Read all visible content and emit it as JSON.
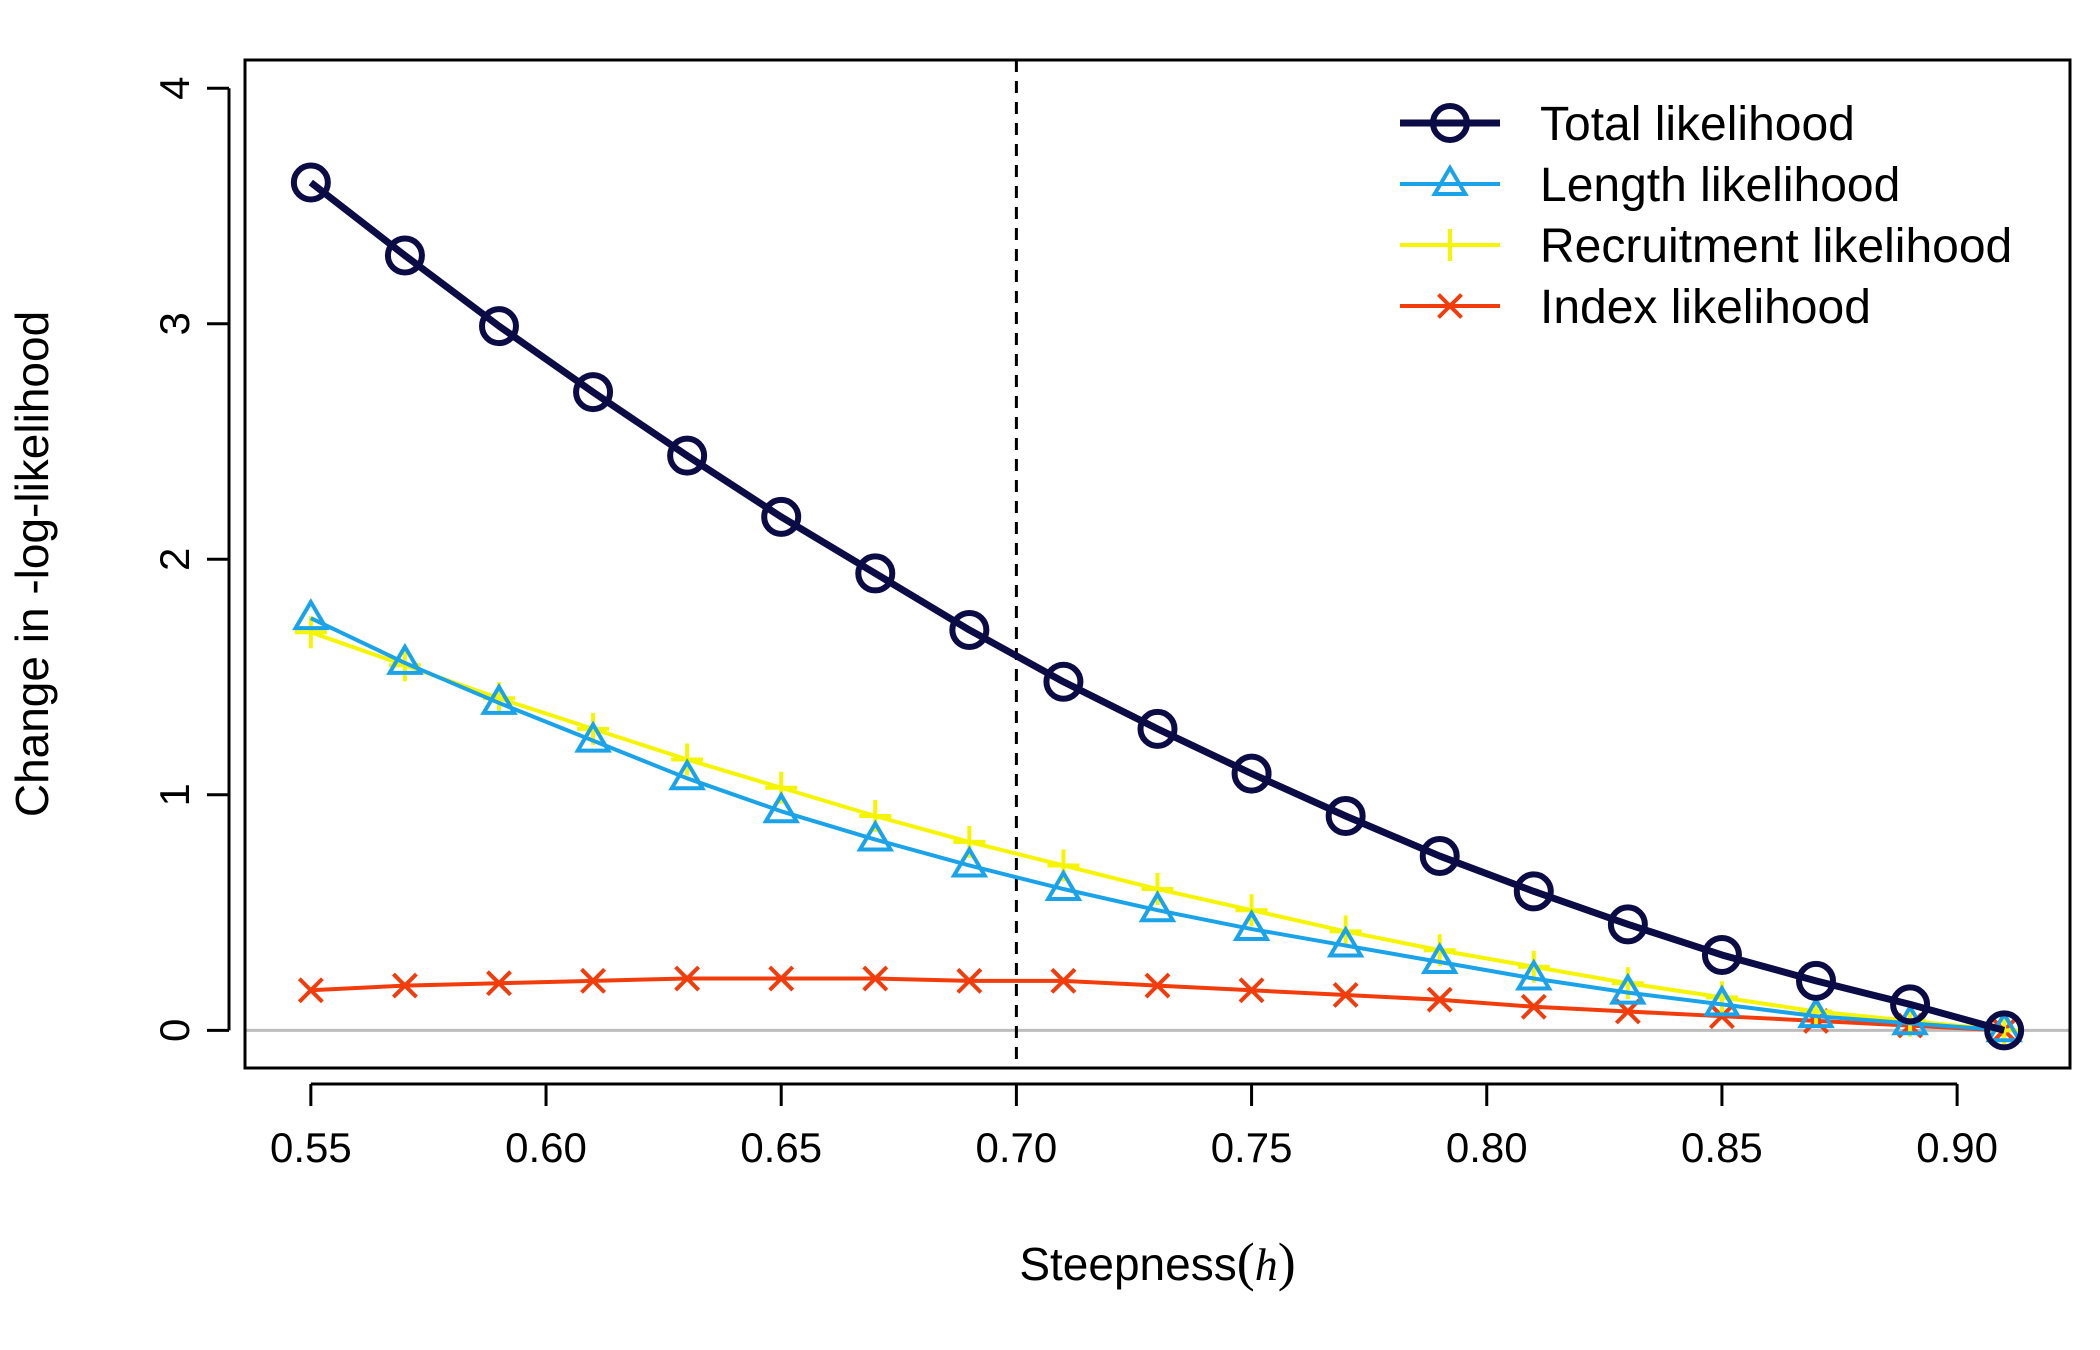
{
  "chart_data": {
    "type": "line",
    "xlabel_prefix": "Steepness",
    "xlabel_symbol": "h",
    "ylabel": "Change in -log-likelihood",
    "xlim": [
      0.536,
      0.924
    ],
    "ylim": [
      -0.16,
      4.12
    ],
    "x_ticks": [
      "0.55",
      "0.60",
      "0.65",
      "0.70",
      "0.75",
      "0.80",
      "0.85",
      "0.90"
    ],
    "x_tick_values": [
      0.55,
      0.6,
      0.65,
      0.7,
      0.75,
      0.8,
      0.85,
      0.9
    ],
    "y_ticks": [
      "0",
      "1",
      "2",
      "3",
      "4"
    ],
    "y_tick_values": [
      0,
      1,
      2,
      3,
      4
    ],
    "reference_vline": 0.7,
    "reference_hline": 0,
    "legend_position": "top-right",
    "x": [
      0.55,
      0.57,
      0.59,
      0.61,
      0.63,
      0.65,
      0.67,
      0.69,
      0.71,
      0.73,
      0.75,
      0.77,
      0.79,
      0.81,
      0.83,
      0.85,
      0.87,
      0.89,
      0.91
    ],
    "series": [
      {
        "name": "Total likelihood",
        "marker": "circle",
        "color": "#0b0b45",
        "values": [
          3.6,
          3.29,
          2.99,
          2.71,
          2.44,
          2.18,
          1.94,
          1.7,
          1.48,
          1.28,
          1.09,
          0.91,
          0.74,
          0.59,
          0.45,
          0.32,
          0.21,
          0.11,
          0.0
        ]
      },
      {
        "name": "Length likelihood",
        "marker": "triangle",
        "color": "#1aa3e8",
        "values": [
          1.75,
          1.56,
          1.39,
          1.23,
          1.07,
          0.93,
          0.81,
          0.7,
          0.6,
          0.51,
          0.43,
          0.36,
          0.29,
          0.22,
          0.16,
          0.11,
          0.06,
          0.03,
          0.0
        ]
      },
      {
        "name": "Recruitment likelihood",
        "marker": "plus",
        "color": "#f5f500",
        "values": [
          1.69,
          1.55,
          1.41,
          1.28,
          1.15,
          1.03,
          0.91,
          0.8,
          0.7,
          0.6,
          0.51,
          0.42,
          0.34,
          0.27,
          0.2,
          0.14,
          0.08,
          0.04,
          0.0
        ]
      },
      {
        "name": "Index likelihood",
        "marker": "x",
        "color": "#f23c0c",
        "values": [
          0.17,
          0.19,
          0.2,
          0.21,
          0.22,
          0.22,
          0.22,
          0.21,
          0.21,
          0.19,
          0.17,
          0.15,
          0.13,
          0.1,
          0.08,
          0.06,
          0.04,
          0.02,
          0.0
        ]
      }
    ]
  }
}
